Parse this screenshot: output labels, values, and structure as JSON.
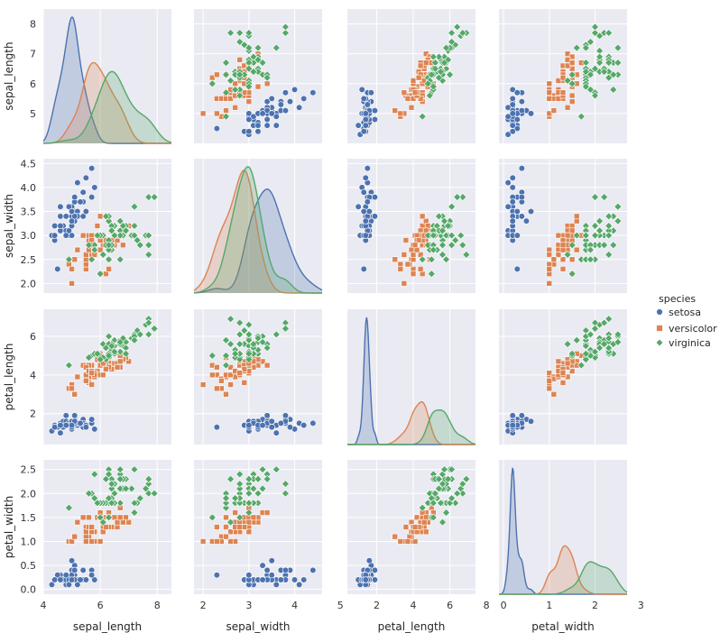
{
  "chart_data": {
    "type": "pairplot",
    "variables": [
      "sepal_length",
      "sepal_width",
      "petal_length",
      "petal_width"
    ],
    "axis_ranges": {
      "sepal_length": [
        4.0,
        8.5
      ],
      "sepal_width": [
        1.8,
        4.6
      ],
      "petal_length": [
        0.4,
        7.4
      ],
      "petal_width": [
        -0.1,
        2.7
      ]
    },
    "ticks": {
      "sepal_length": [
        4,
        6,
        8
      ],
      "sepal_width": [
        2,
        3,
        4,
        5
      ],
      "petal_length": [
        2,
        4,
        6,
        8
      ],
      "petal_width": [
        0,
        1,
        2,
        3
      ]
    },
    "y_ticks": {
      "sepal_length": [
        "5",
        "6",
        "7",
        "8"
      ],
      "sepal_width": [
        "2.0",
        "2.5",
        "3.0",
        "3.5",
        "4.0",
        "4.5"
      ],
      "petal_length": [
        "2",
        "4",
        "6"
      ],
      "petal_width": [
        "0.0",
        "0.5",
        "1.0",
        "1.5",
        "2.0",
        "2.5"
      ]
    },
    "grid": true,
    "legend": {
      "title": "species",
      "placement": "right",
      "entries": [
        "setosa",
        "versicolor",
        "virginica"
      ]
    },
    "series": [
      {
        "name": "setosa",
        "marker": "circle",
        "color": "#4c72b0",
        "points": [
          [
            5.1,
            3.5,
            1.4,
            0.2
          ],
          [
            4.9,
            3.0,
            1.4,
            0.2
          ],
          [
            4.7,
            3.2,
            1.3,
            0.2
          ],
          [
            4.6,
            3.1,
            1.5,
            0.2
          ],
          [
            5.0,
            3.6,
            1.4,
            0.2
          ],
          [
            5.4,
            3.9,
            1.7,
            0.4
          ],
          [
            4.6,
            3.4,
            1.4,
            0.3
          ],
          [
            5.0,
            3.4,
            1.5,
            0.2
          ],
          [
            4.4,
            2.9,
            1.4,
            0.2
          ],
          [
            4.9,
            3.1,
            1.5,
            0.1
          ],
          [
            5.4,
            3.7,
            1.5,
            0.2
          ],
          [
            4.8,
            3.4,
            1.6,
            0.2
          ],
          [
            4.8,
            3.0,
            1.4,
            0.1
          ],
          [
            4.3,
            3.0,
            1.1,
            0.1
          ],
          [
            5.8,
            4.0,
            1.2,
            0.2
          ],
          [
            5.7,
            4.4,
            1.5,
            0.4
          ],
          [
            5.4,
            3.9,
            1.3,
            0.4
          ],
          [
            5.1,
            3.5,
            1.4,
            0.3
          ],
          [
            5.7,
            3.8,
            1.7,
            0.3
          ],
          [
            5.1,
            3.8,
            1.5,
            0.3
          ],
          [
            5.4,
            3.4,
            1.7,
            0.2
          ],
          [
            5.1,
            3.7,
            1.5,
            0.4
          ],
          [
            4.6,
            3.6,
            1.0,
            0.2
          ],
          [
            5.1,
            3.3,
            1.7,
            0.5
          ],
          [
            4.8,
            3.4,
            1.9,
            0.2
          ],
          [
            5.0,
            3.0,
            1.6,
            0.2
          ],
          [
            5.0,
            3.4,
            1.6,
            0.4
          ],
          [
            5.2,
            3.5,
            1.5,
            0.2
          ],
          [
            5.2,
            3.4,
            1.4,
            0.2
          ],
          [
            4.7,
            3.2,
            1.6,
            0.2
          ],
          [
            4.8,
            3.1,
            1.6,
            0.2
          ],
          [
            5.4,
            3.4,
            1.5,
            0.4
          ],
          [
            5.2,
            4.1,
            1.5,
            0.1
          ],
          [
            5.5,
            4.2,
            1.4,
            0.2
          ],
          [
            4.9,
            3.1,
            1.5,
            0.2
          ],
          [
            5.0,
            3.2,
            1.2,
            0.2
          ],
          [
            5.5,
            3.5,
            1.3,
            0.2
          ],
          [
            4.9,
            3.6,
            1.4,
            0.1
          ],
          [
            4.4,
            3.0,
            1.3,
            0.2
          ],
          [
            5.1,
            3.4,
            1.5,
            0.2
          ],
          [
            5.0,
            3.5,
            1.3,
            0.3
          ],
          [
            4.5,
            2.3,
            1.3,
            0.3
          ],
          [
            4.4,
            3.2,
            1.3,
            0.2
          ],
          [
            5.0,
            3.5,
            1.6,
            0.6
          ],
          [
            5.1,
            3.8,
            1.9,
            0.4
          ],
          [
            4.8,
            3.0,
            1.4,
            0.3
          ],
          [
            5.1,
            3.8,
            1.6,
            0.2
          ],
          [
            4.6,
            3.2,
            1.4,
            0.2
          ],
          [
            5.3,
            3.7,
            1.5,
            0.2
          ],
          [
            5.0,
            3.3,
            1.4,
            0.2
          ]
        ]
      },
      {
        "name": "versicolor",
        "marker": "square",
        "color": "#dd8452",
        "points": [
          [
            7.0,
            3.2,
            4.7,
            1.4
          ],
          [
            6.4,
            3.2,
            4.5,
            1.5
          ],
          [
            6.9,
            3.1,
            4.9,
            1.5
          ],
          [
            5.5,
            2.3,
            4.0,
            1.3
          ],
          [
            6.5,
            2.8,
            4.6,
            1.5
          ],
          [
            5.7,
            2.8,
            4.5,
            1.3
          ],
          [
            6.3,
            3.3,
            4.7,
            1.6
          ],
          [
            4.9,
            2.4,
            3.3,
            1.0
          ],
          [
            6.6,
            2.9,
            4.6,
            1.3
          ],
          [
            5.2,
            2.7,
            3.9,
            1.4
          ],
          [
            5.0,
            2.0,
            3.5,
            1.0
          ],
          [
            5.9,
            3.0,
            4.2,
            1.5
          ],
          [
            6.0,
            2.2,
            4.0,
            1.0
          ],
          [
            6.1,
            2.9,
            4.7,
            1.4
          ],
          [
            5.6,
            2.9,
            3.6,
            1.3
          ],
          [
            6.7,
            3.1,
            4.4,
            1.4
          ],
          [
            5.6,
            3.0,
            4.5,
            1.5
          ],
          [
            5.8,
            2.7,
            4.1,
            1.0
          ],
          [
            6.2,
            2.2,
            4.5,
            1.5
          ],
          [
            5.6,
            2.5,
            3.9,
            1.1
          ],
          [
            5.9,
            3.2,
            4.8,
            1.8
          ],
          [
            6.1,
            2.8,
            4.0,
            1.3
          ],
          [
            6.3,
            2.5,
            4.9,
            1.5
          ],
          [
            6.1,
            2.8,
            4.7,
            1.2
          ],
          [
            6.4,
            2.9,
            4.3,
            1.3
          ],
          [
            6.6,
            3.0,
            4.4,
            1.4
          ],
          [
            6.8,
            2.8,
            4.8,
            1.4
          ],
          [
            6.7,
            3.0,
            5.0,
            1.7
          ],
          [
            6.0,
            2.9,
            4.5,
            1.5
          ],
          [
            5.7,
            2.6,
            3.5,
            1.0
          ],
          [
            5.5,
            2.4,
            3.8,
            1.1
          ],
          [
            5.5,
            2.4,
            3.7,
            1.0
          ],
          [
            5.8,
            2.7,
            3.9,
            1.2
          ],
          [
            6.0,
            2.7,
            5.1,
            1.6
          ],
          [
            5.4,
            3.0,
            4.5,
            1.5
          ],
          [
            6.0,
            3.4,
            4.5,
            1.6
          ],
          [
            6.7,
            3.1,
            4.7,
            1.5
          ],
          [
            6.3,
            2.3,
            4.4,
            1.3
          ],
          [
            5.6,
            3.0,
            4.1,
            1.3
          ],
          [
            5.5,
            2.5,
            4.0,
            1.3
          ],
          [
            5.5,
            2.6,
            4.4,
            1.2
          ],
          [
            6.1,
            3.0,
            4.6,
            1.4
          ],
          [
            5.8,
            2.6,
            4.0,
            1.2
          ],
          [
            5.0,
            2.3,
            3.3,
            1.0
          ],
          [
            5.6,
            2.7,
            4.2,
            1.3
          ],
          [
            5.7,
            3.0,
            4.2,
            1.2
          ],
          [
            5.7,
            2.9,
            4.2,
            1.3
          ],
          [
            6.2,
            2.9,
            4.3,
            1.3
          ],
          [
            5.1,
            2.5,
            3.0,
            1.1
          ],
          [
            5.7,
            2.8,
            4.1,
            1.3
          ]
        ]
      },
      {
        "name": "virginica",
        "marker": "diamond",
        "color": "#55a868",
        "points": [
          [
            6.3,
            3.3,
            6.0,
            2.5
          ],
          [
            5.8,
            2.7,
            5.1,
            1.9
          ],
          [
            7.1,
            3.0,
            5.9,
            2.1
          ],
          [
            6.3,
            2.9,
            5.6,
            1.8
          ],
          [
            6.5,
            3.0,
            5.8,
            2.2
          ],
          [
            7.6,
            3.0,
            6.6,
            2.1
          ],
          [
            4.9,
            2.5,
            4.5,
            1.7
          ],
          [
            7.3,
            2.9,
            6.3,
            1.8
          ],
          [
            6.7,
            2.5,
            5.8,
            1.8
          ],
          [
            7.2,
            3.6,
            6.1,
            2.5
          ],
          [
            6.5,
            3.2,
            5.1,
            2.0
          ],
          [
            6.4,
            2.7,
            5.3,
            1.9
          ],
          [
            6.8,
            3.0,
            5.5,
            2.1
          ],
          [
            5.7,
            2.5,
            5.0,
            2.0
          ],
          [
            5.8,
            2.8,
            5.1,
            2.4
          ],
          [
            6.4,
            3.2,
            5.3,
            2.3
          ],
          [
            6.5,
            3.0,
            5.5,
            1.8
          ],
          [
            7.7,
            3.8,
            6.7,
            2.2
          ],
          [
            7.7,
            2.6,
            6.9,
            2.3
          ],
          [
            6.0,
            2.2,
            5.0,
            1.5
          ],
          [
            6.9,
            3.2,
            5.7,
            2.3
          ],
          [
            5.6,
            2.8,
            4.9,
            2.0
          ],
          [
            7.7,
            2.8,
            6.7,
            2.0
          ],
          [
            6.3,
            2.7,
            4.9,
            1.8
          ],
          [
            6.7,
            3.3,
            5.7,
            2.1
          ],
          [
            7.2,
            3.2,
            6.0,
            1.8
          ],
          [
            6.2,
            2.8,
            4.8,
            1.8
          ],
          [
            6.1,
            3.0,
            4.9,
            1.8
          ],
          [
            6.4,
            2.8,
            5.6,
            2.1
          ],
          [
            7.2,
            3.0,
            5.8,
            1.6
          ],
          [
            7.4,
            2.8,
            6.1,
            1.9
          ],
          [
            7.9,
            3.8,
            6.4,
            2.0
          ],
          [
            6.4,
            2.8,
            5.6,
            2.2
          ],
          [
            6.3,
            2.8,
            5.1,
            1.5
          ],
          [
            6.1,
            2.6,
            5.6,
            1.4
          ],
          [
            7.7,
            3.0,
            6.1,
            2.3
          ],
          [
            6.3,
            3.4,
            5.6,
            2.4
          ],
          [
            6.4,
            3.1,
            5.5,
            1.8
          ],
          [
            6.0,
            3.0,
            4.8,
            1.8
          ],
          [
            6.9,
            3.1,
            5.4,
            2.1
          ],
          [
            6.7,
            3.1,
            5.6,
            2.4
          ],
          [
            6.9,
            3.1,
            5.1,
            2.3
          ],
          [
            5.8,
            2.7,
            5.1,
            1.9
          ],
          [
            6.8,
            3.2,
            5.9,
            2.3
          ],
          [
            6.7,
            3.3,
            5.7,
            2.5
          ],
          [
            6.7,
            3.0,
            5.2,
            2.3
          ],
          [
            6.3,
            2.5,
            5.0,
            1.9
          ],
          [
            6.5,
            3.0,
            5.2,
            2.0
          ],
          [
            6.2,
            3.4,
            5.4,
            2.3
          ],
          [
            5.9,
            3.0,
            5.1,
            1.8
          ]
        ]
      }
    ]
  }
}
